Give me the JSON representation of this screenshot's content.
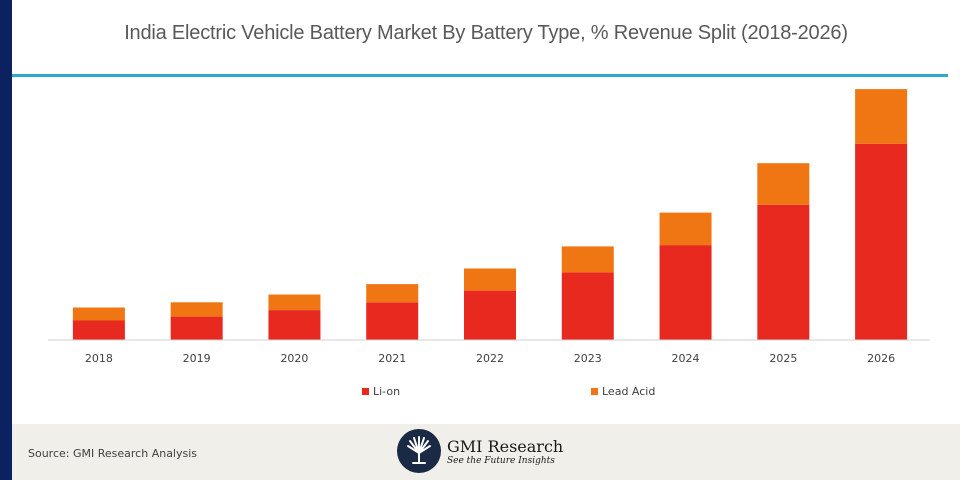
{
  "title": "India Electric Vehicle Battery Market By Battery Type, % Revenue Split (2018-2026)",
  "chart_data": {
    "type": "bar",
    "stacked": true,
    "title": "India Electric Vehicle Battery Market By Battery Type, % Revenue Split (2018-2026)",
    "xlabel": "",
    "ylabel": "",
    "y_axis_visible": false,
    "grid": false,
    "legend_position": "bottom",
    "categories": [
      "2018",
      "2019",
      "2020",
      "2021",
      "2022",
      "2023",
      "2024",
      "2025",
      "2026"
    ],
    "series": [
      {
        "name": "Li-on",
        "color": "#e8291f",
        "values": [
          15,
          18,
          23,
          29,
          38,
          52,
          73,
          104,
          151
        ]
      },
      {
        "name": "Lead Acid",
        "color": "#f07613",
        "values": [
          10,
          11,
          12,
          14,
          17,
          20,
          25,
          32,
          42
        ]
      }
    ],
    "ylim": [
      0,
      200
    ],
    "value_note": "Relative values estimated from bar heights; no y-axis scale shown"
  },
  "legend": [
    {
      "label": "Li-on",
      "color": "#e8291f"
    },
    {
      "label": "Lead Acid",
      "color": "#f07613"
    }
  ],
  "footer": {
    "source": "Source: GMI Research Analysis",
    "brand": "GMI Research",
    "tagline": "See the Future Insights"
  },
  "colors": {
    "accent_rule": "#2ea8d3",
    "side_bar": "#0b2160",
    "footer_bg": "#f0efea"
  }
}
